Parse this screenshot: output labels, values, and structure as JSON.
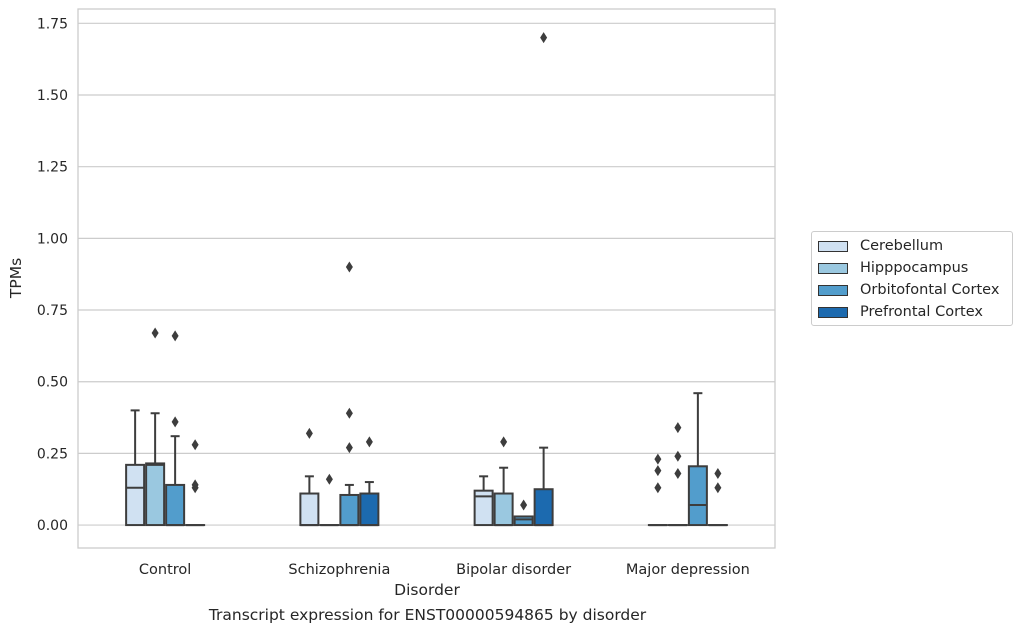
{
  "chart_data": {
    "type": "box",
    "caption": "Transcript expression for ENST00000594865 by disorder",
    "xlabel": "Disorder",
    "ylabel": "TPMs",
    "ylim": [
      -0.08,
      1.8
    ],
    "yticks": [
      "0.00",
      "0.25",
      "0.50",
      "0.75",
      "1.00",
      "1.25",
      "1.50",
      "1.75"
    ],
    "ytick_values": [
      0,
      0.25,
      0.5,
      0.75,
      1.0,
      1.25,
      1.5,
      1.75
    ],
    "grid": true,
    "legend_position": "right",
    "categories": [
      "Control",
      "Schizophrenia",
      "Bipolar disorder",
      "Major depression"
    ],
    "series": [
      {
        "name": "Cerebellum",
        "color": "#d0e1f2",
        "boxes": [
          {
            "q1": 0,
            "median": 0.13,
            "q3": 0.21,
            "whisker_low": 0,
            "whisker_high": 0.4,
            "outliers": []
          },
          {
            "q1": 0,
            "median": 0,
            "q3": 0.11,
            "whisker_low": 0,
            "whisker_high": 0.17,
            "outliers": [
              0.32
            ]
          },
          {
            "q1": 0,
            "median": 0.1,
            "q3": 0.12,
            "whisker_low": 0,
            "whisker_high": 0.17,
            "outliers": []
          },
          {
            "q1": 0,
            "median": 0,
            "q3": 0,
            "whisker_low": 0,
            "whisker_high": 0,
            "outliers": [
              0.13,
              0.19,
              0.23
            ]
          }
        ]
      },
      {
        "name": "Hipppocampus",
        "color": "#9ac8e0",
        "boxes": [
          {
            "q1": 0,
            "median": 0.21,
            "q3": 0.215,
            "whisker_low": 0,
            "whisker_high": 0.39,
            "outliers": [
              0.67
            ]
          },
          {
            "q1": 0,
            "median": 0,
            "q3": 0,
            "whisker_low": 0,
            "whisker_high": 0,
            "outliers": [
              0.16
            ]
          },
          {
            "q1": 0,
            "median": 0,
            "q3": 0.11,
            "whisker_low": 0,
            "whisker_high": 0.2,
            "outliers": [
              0.29
            ]
          },
          {
            "q1": 0,
            "median": 0,
            "q3": 0,
            "whisker_low": 0,
            "whisker_high": 0,
            "outliers": [
              0.18,
              0.24,
              0.34
            ]
          }
        ]
      },
      {
        "name": "Orbitofontal Cortex",
        "color": "#529dcc",
        "boxes": [
          {
            "q1": 0,
            "median": 0,
            "q3": 0.14,
            "whisker_low": 0,
            "whisker_high": 0.31,
            "outliers": [
              0.36,
              0.66
            ]
          },
          {
            "q1": 0,
            "median": 0,
            "q3": 0.105,
            "whisker_low": 0,
            "whisker_high": 0.14,
            "outliers": [
              0.27,
              0.39,
              0.9
            ]
          },
          {
            "q1": 0,
            "median": 0.02,
            "q3": 0.03,
            "whisker_low": 0,
            "whisker_high": 0.03,
            "outliers": [
              0.07
            ]
          },
          {
            "q1": 0,
            "median": 0.07,
            "q3": 0.205,
            "whisker_low": 0,
            "whisker_high": 0.46,
            "outliers": []
          }
        ]
      },
      {
        "name": "Prefrontal Cortex",
        "color": "#1c6aaf",
        "boxes": [
          {
            "q1": 0,
            "median": 0,
            "q3": 0,
            "whisker_low": 0,
            "whisker_high": 0,
            "outliers": [
              0.13,
              0.14,
              0.28
            ]
          },
          {
            "q1": 0,
            "median": 0,
            "q3": 0.11,
            "whisker_low": 0,
            "whisker_high": 0.15,
            "outliers": [
              0.29
            ]
          },
          {
            "q1": 0,
            "median": 0,
            "q3": 0.125,
            "whisker_low": 0,
            "whisker_high": 0.27,
            "outliers": [
              1.7
            ]
          },
          {
            "q1": 0,
            "median": 0,
            "q3": 0,
            "whisker_low": 0,
            "whisker_high": 0,
            "outliers": [
              0.13,
              0.18
            ]
          }
        ]
      }
    ]
  }
}
